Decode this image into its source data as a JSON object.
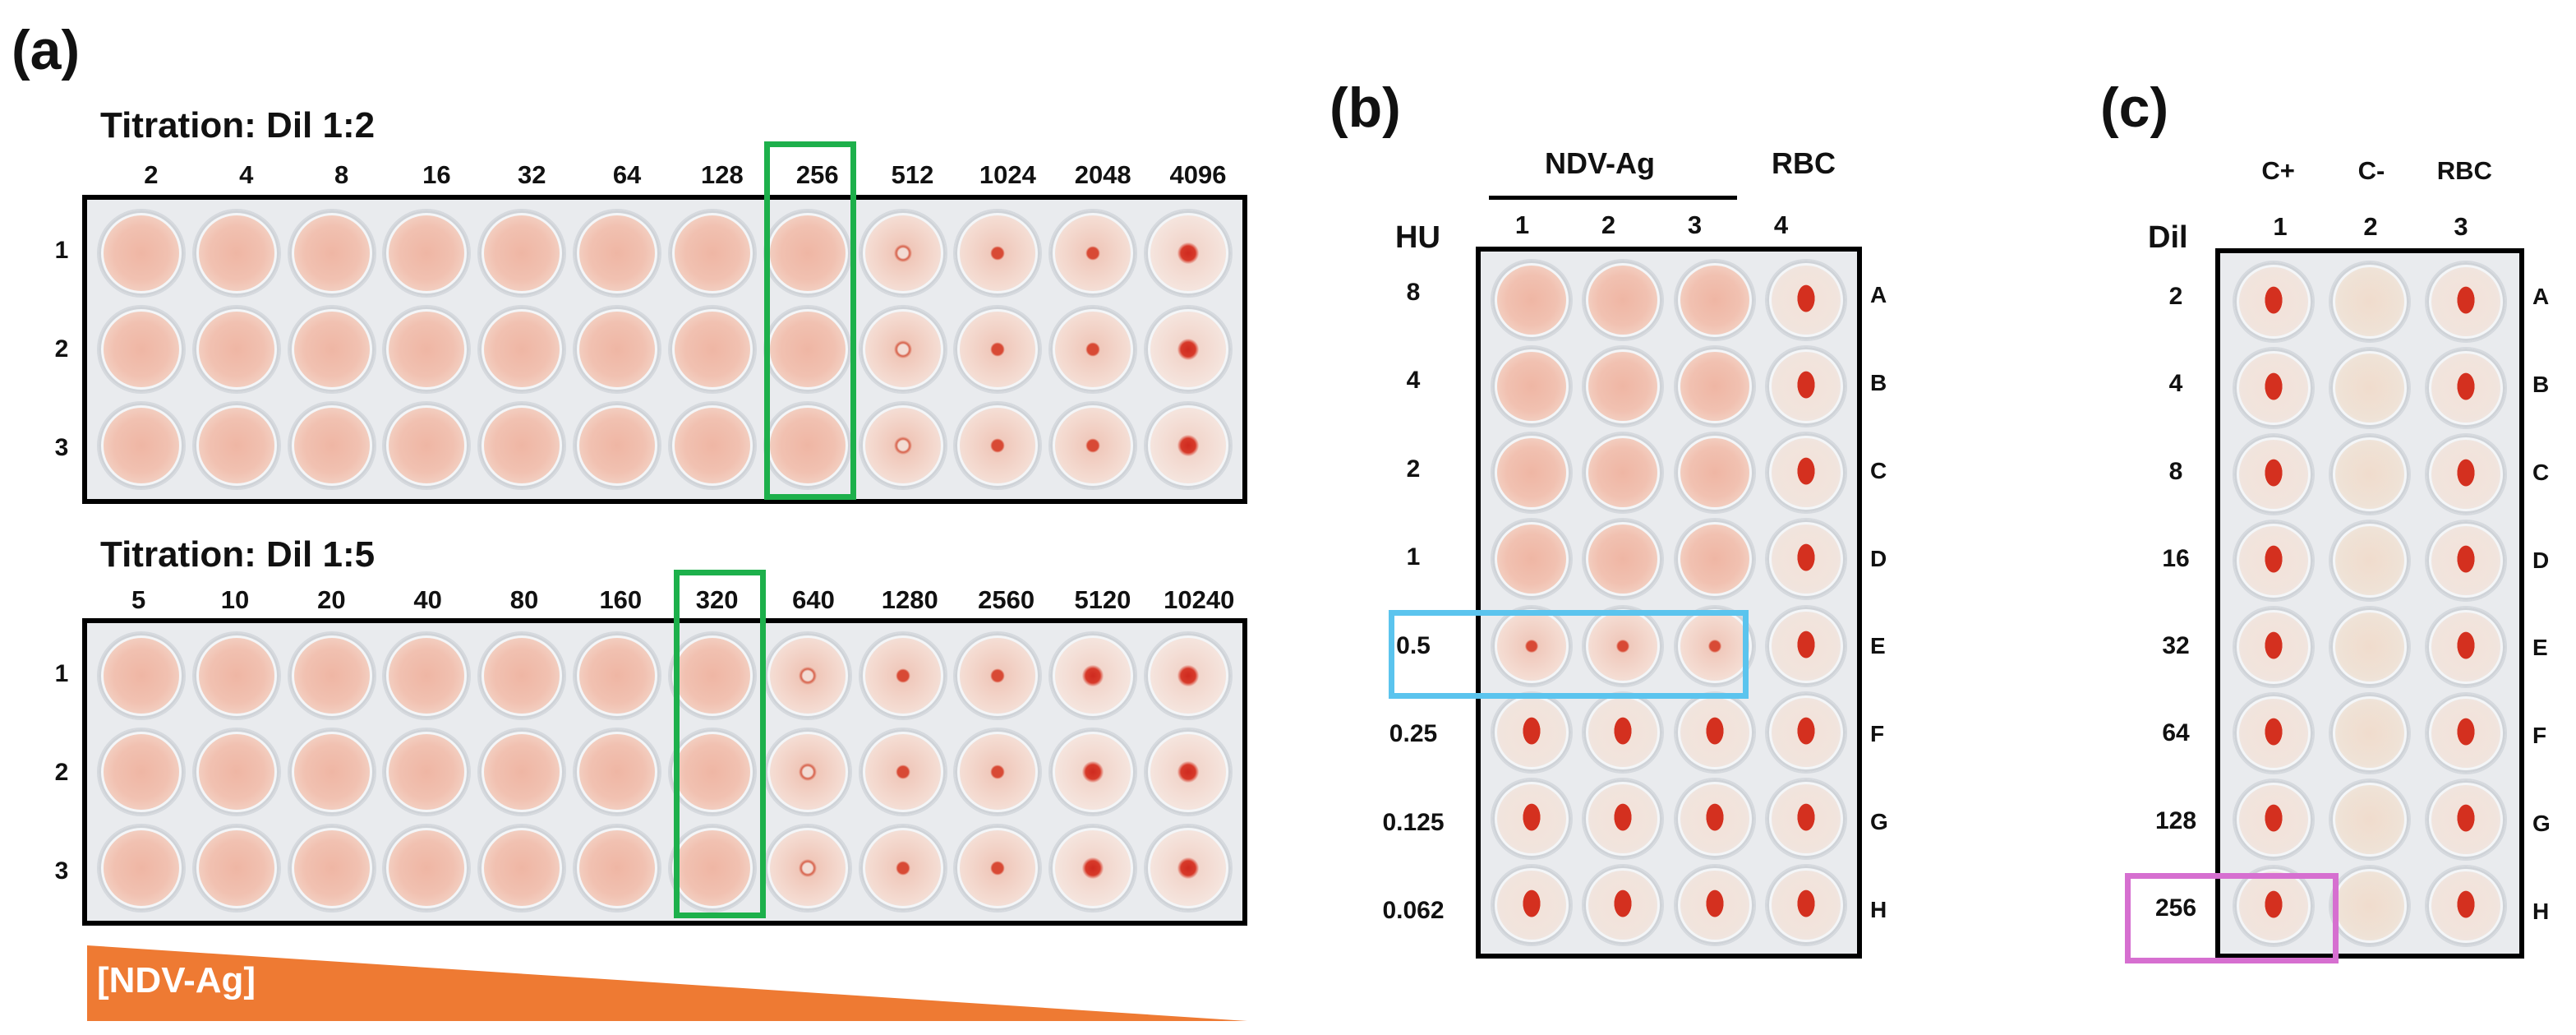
{
  "panel_a": {
    "label": "(a)",
    "top": {
      "title": "Titration: Dil 1:2",
      "columns": [
        "2",
        "4",
        "8",
        "16",
        "32",
        "64",
        "128",
        "256",
        "512",
        "1024",
        "2048",
        "4096"
      ],
      "rows": [
        "1",
        "2",
        "3"
      ],
      "pattern": [
        "diffuse",
        "diffuse",
        "diffuse",
        "diffuse",
        "diffuse",
        "diffuse",
        "diffuse",
        "diffuse",
        "ring",
        "button-sm",
        "button-sm",
        "button"
      ],
      "highlight_column": "256"
    },
    "bottom": {
      "title": "Titration: Dil 1:5",
      "columns": [
        "5",
        "10",
        "20",
        "40",
        "80",
        "160",
        "320",
        "640",
        "1280",
        "2560",
        "5120",
        "10240"
      ],
      "rows": [
        "1",
        "2",
        "3"
      ],
      "pattern": [
        "diffuse",
        "diffuse",
        "diffuse",
        "diffuse",
        "diffuse",
        "diffuse",
        "diffuse",
        "ring",
        "button-sm",
        "button-sm",
        "button",
        "button"
      ],
      "highlight_column": "320"
    },
    "gradient_label": "[NDV-Ag]"
  },
  "panel_b": {
    "label": "(b)",
    "group_label": "NDV-Ag",
    "rbc_label": "RBC",
    "axis_label": "HU",
    "columns": [
      "1",
      "2",
      "3",
      "4"
    ],
    "hu_values": [
      "8",
      "4",
      "2",
      "1",
      "0.5",
      "0.25",
      "0.125",
      "0.062"
    ],
    "row_letters": [
      "A",
      "B",
      "C",
      "D",
      "E",
      "F",
      "G",
      "H"
    ],
    "highlight_value": "0.5"
  },
  "panel_c": {
    "label": "(c)",
    "headers": [
      "C+",
      "C-",
      "RBC"
    ],
    "axis_label": "Dil",
    "columns": [
      "1",
      "2",
      "3"
    ],
    "dil_values": [
      "2",
      "4",
      "8",
      "16",
      "32",
      "64",
      "128",
      "256"
    ],
    "row_letters": [
      "A",
      "B",
      "C",
      "D",
      "E",
      "F",
      "G",
      "H"
    ],
    "highlight_value": "256"
  },
  "colors": {
    "green_box": "#1db04b",
    "blue_box": "#5bc4ee",
    "magenta_box": "#d66fd0",
    "gradient": "#ee7a33"
  }
}
